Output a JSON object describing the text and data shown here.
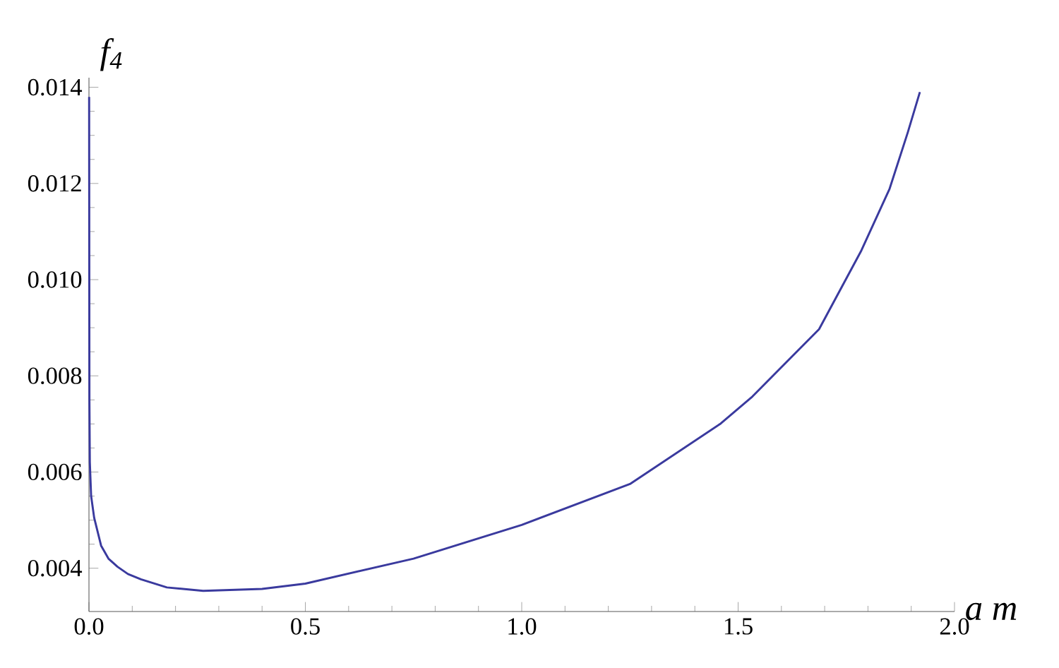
{
  "chart_data": {
    "type": "line",
    "xlabel": "a m",
    "ylabel": "f$_{4}$",
    "xlim": [
      0,
      2.0
    ],
    "ylim": [
      0.0031,
      0.0142
    ],
    "xticks": [
      {
        "value": 0,
        "label": "0.0"
      },
      0.5,
      {
        "value": 1,
        "label": "1.0"
      },
      1.5,
      {
        "value": 2,
        "label": "2.0"
      }
    ],
    "yticks": [
      0.004,
      0.006,
      0.008,
      {
        "value": 0.01,
        "label": "0.010"
      },
      0.012,
      0.014
    ],
    "series": [
      {
        "color": "#3a3a9e",
        "x": [
          0.0004,
          0.001,
          0.002,
          0.005,
          0.012,
          0.028,
          0.045,
          0.066,
          0.09,
          0.12,
          0.18,
          0.264,
          0.4,
          0.5,
          0.75,
          1.0,
          1.25,
          1.46,
          1.533,
          1.687,
          1.785,
          1.85,
          1.892,
          1.92
        ],
        "values": [
          0.0138,
          0.0075,
          0.0062,
          0.0055,
          0.00505,
          0.00447,
          0.0042,
          0.00403,
          0.00388,
          0.00377,
          0.0036,
          0.00353,
          0.00357,
          0.00368,
          0.0042,
          0.0049,
          0.00575,
          0.00701,
          0.00757,
          0.00897,
          0.01061,
          0.01189,
          0.01306,
          0.0139
        ]
      }
    ]
  }
}
